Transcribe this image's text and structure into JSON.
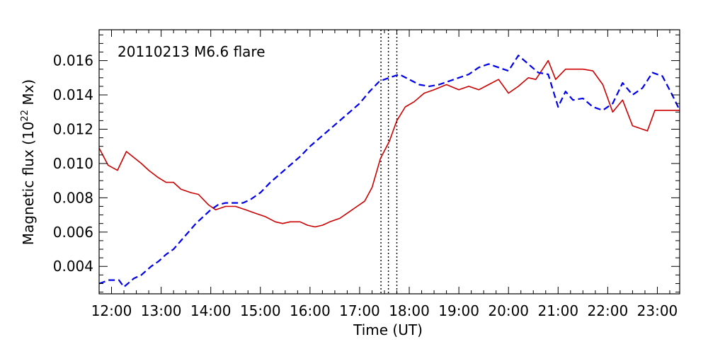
{
  "chart_data": {
    "type": "line",
    "title": "20110213 M6.6 flare",
    "xlabel": "Time (UT)",
    "ylabel_prefix": "Magnetic  flux  (10",
    "ylabel_exp": "22",
    "ylabel_suffix": " Mx)",
    "xlim": [
      11.75,
      23.45
    ],
    "ylim": [
      0.0024,
      0.0178
    ],
    "x_ticks": [
      12,
      13,
      14,
      15,
      16,
      17,
      18,
      19,
      20,
      21,
      22,
      23
    ],
    "x_tick_labels": [
      "12:00",
      "13:00",
      "14:00",
      "15:00",
      "16:00",
      "17:00",
      "18:00",
      "19:00",
      "20:00",
      "21:00",
      "22:00",
      "23:00"
    ],
    "y_ticks": [
      0.004,
      0.006,
      0.008,
      0.01,
      0.012,
      0.014,
      0.016
    ],
    "y_tick_labels": [
      "0.004",
      "0.006",
      "0.008",
      "0.010",
      "0.012",
      "0.014",
      "0.016"
    ],
    "vlines": [
      17.43,
      17.58,
      17.75
    ],
    "series": [
      {
        "color": "#cc0000",
        "style": "solid",
        "x": [
          11.75,
          11.93,
          12.12,
          12.3,
          12.6,
          12.75,
          12.93,
          13.1,
          13.25,
          13.4,
          13.6,
          13.75,
          13.95,
          14.1,
          14.3,
          14.5,
          14.7,
          14.9,
          15.1,
          15.3,
          15.45,
          15.6,
          15.8,
          15.95,
          16.1,
          16.25,
          16.4,
          16.6,
          16.75,
          16.9,
          17.1,
          17.25,
          17.42,
          17.6,
          17.75,
          17.92,
          18.1,
          18.3,
          18.5,
          18.75,
          19.0,
          19.2,
          19.4,
          19.6,
          19.8,
          20.0,
          20.2,
          20.4,
          20.55,
          20.8,
          20.95,
          21.15,
          21.3,
          21.5,
          21.7,
          21.9,
          22.1,
          22.3,
          22.5,
          22.8,
          22.95,
          23.1,
          23.25,
          23.45
        ],
        "values": [
          0.0109,
          0.0099,
          0.0096,
          0.0107,
          0.01,
          0.0096,
          0.0092,
          0.0089,
          0.0089,
          0.0085,
          0.0083,
          0.0082,
          0.0076,
          0.0073,
          0.0075,
          0.0075,
          0.0073,
          0.0071,
          0.0069,
          0.0066,
          0.0065,
          0.0066,
          0.0066,
          0.0064,
          0.0063,
          0.0064,
          0.0066,
          0.0068,
          0.0071,
          0.0074,
          0.0078,
          0.0086,
          0.0103,
          0.0113,
          0.0125,
          0.0133,
          0.0136,
          0.0141,
          0.0143,
          0.0146,
          0.0143,
          0.0145,
          0.0143,
          0.0146,
          0.0149,
          0.0141,
          0.0145,
          0.015,
          0.0149,
          0.016,
          0.0149,
          0.0155,
          0.0155,
          0.0155,
          0.0154,
          0.0146,
          0.013,
          0.0137,
          0.0122,
          0.0119,
          0.0131,
          0.0131,
          0.0131,
          0.0131
        ]
      },
      {
        "color": "#0000ee",
        "style": "dashed",
        "x": [
          11.75,
          11.95,
          12.15,
          12.25,
          12.45,
          12.6,
          12.8,
          12.95,
          13.1,
          13.25,
          13.4,
          13.55,
          13.7,
          13.85,
          14.0,
          14.15,
          14.3,
          14.5,
          14.65,
          14.8,
          15.0,
          15.2,
          15.4,
          15.6,
          15.8,
          16.0,
          16.2,
          16.4,
          16.6,
          16.8,
          17.0,
          17.2,
          17.4,
          17.6,
          17.8,
          18.0,
          18.2,
          18.4,
          18.6,
          18.8,
          19.0,
          19.2,
          19.4,
          19.6,
          19.8,
          20.0,
          20.2,
          20.4,
          20.6,
          20.8,
          21.0,
          21.15,
          21.3,
          21.5,
          21.7,
          21.9,
          22.1,
          22.3,
          22.5,
          22.7,
          22.9,
          23.1,
          23.3,
          23.45
        ],
        "values": [
          0.003,
          0.0032,
          0.0032,
          0.0028,
          0.0033,
          0.0035,
          0.004,
          0.0043,
          0.0047,
          0.005,
          0.0055,
          0.006,
          0.0065,
          0.0069,
          0.0073,
          0.0076,
          0.0077,
          0.0077,
          0.0077,
          0.0079,
          0.0083,
          0.0089,
          0.0094,
          0.0099,
          0.0104,
          0.011,
          0.0115,
          0.012,
          0.0125,
          0.013,
          0.0135,
          0.0142,
          0.0148,
          0.015,
          0.0152,
          0.0149,
          0.0146,
          0.0145,
          0.0146,
          0.0148,
          0.015,
          0.0152,
          0.0156,
          0.0158,
          0.0156,
          0.0154,
          0.0163,
          0.0158,
          0.0153,
          0.0152,
          0.0133,
          0.0142,
          0.0137,
          0.0138,
          0.0133,
          0.0131,
          0.0135,
          0.0147,
          0.014,
          0.0144,
          0.0153,
          0.0151,
          0.014,
          0.0131
        ]
      }
    ]
  }
}
